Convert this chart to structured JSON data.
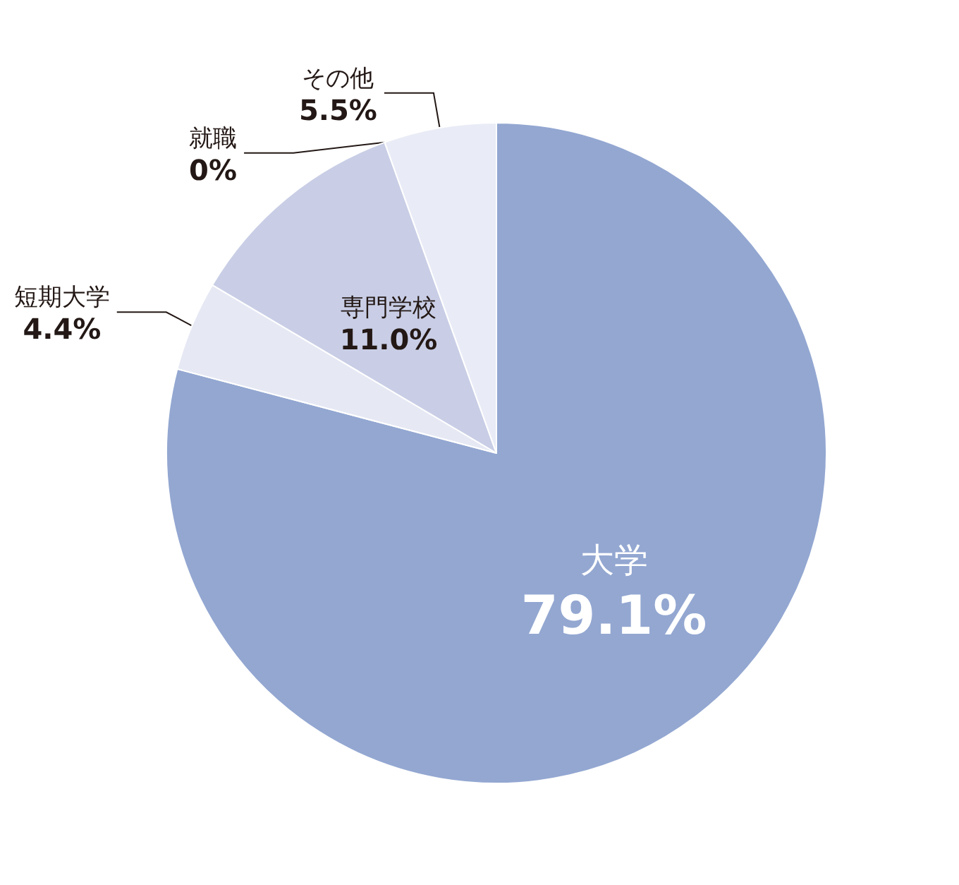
{
  "chart_data": {
    "type": "pie",
    "categories": [
      "大学",
      "短期大学",
      "専門学校",
      "就職",
      "その他"
    ],
    "values": [
      79.1,
      4.4,
      11.0,
      0,
      5.5
    ],
    "value_labels": [
      "79.1%",
      "4.4%",
      "11.0%",
      "0%",
      "5.5%"
    ],
    "colors": [
      "#93a7d1",
      "#e6e9f4",
      "#c9cee6",
      "#d5daee",
      "#e9ecf6"
    ]
  }
}
